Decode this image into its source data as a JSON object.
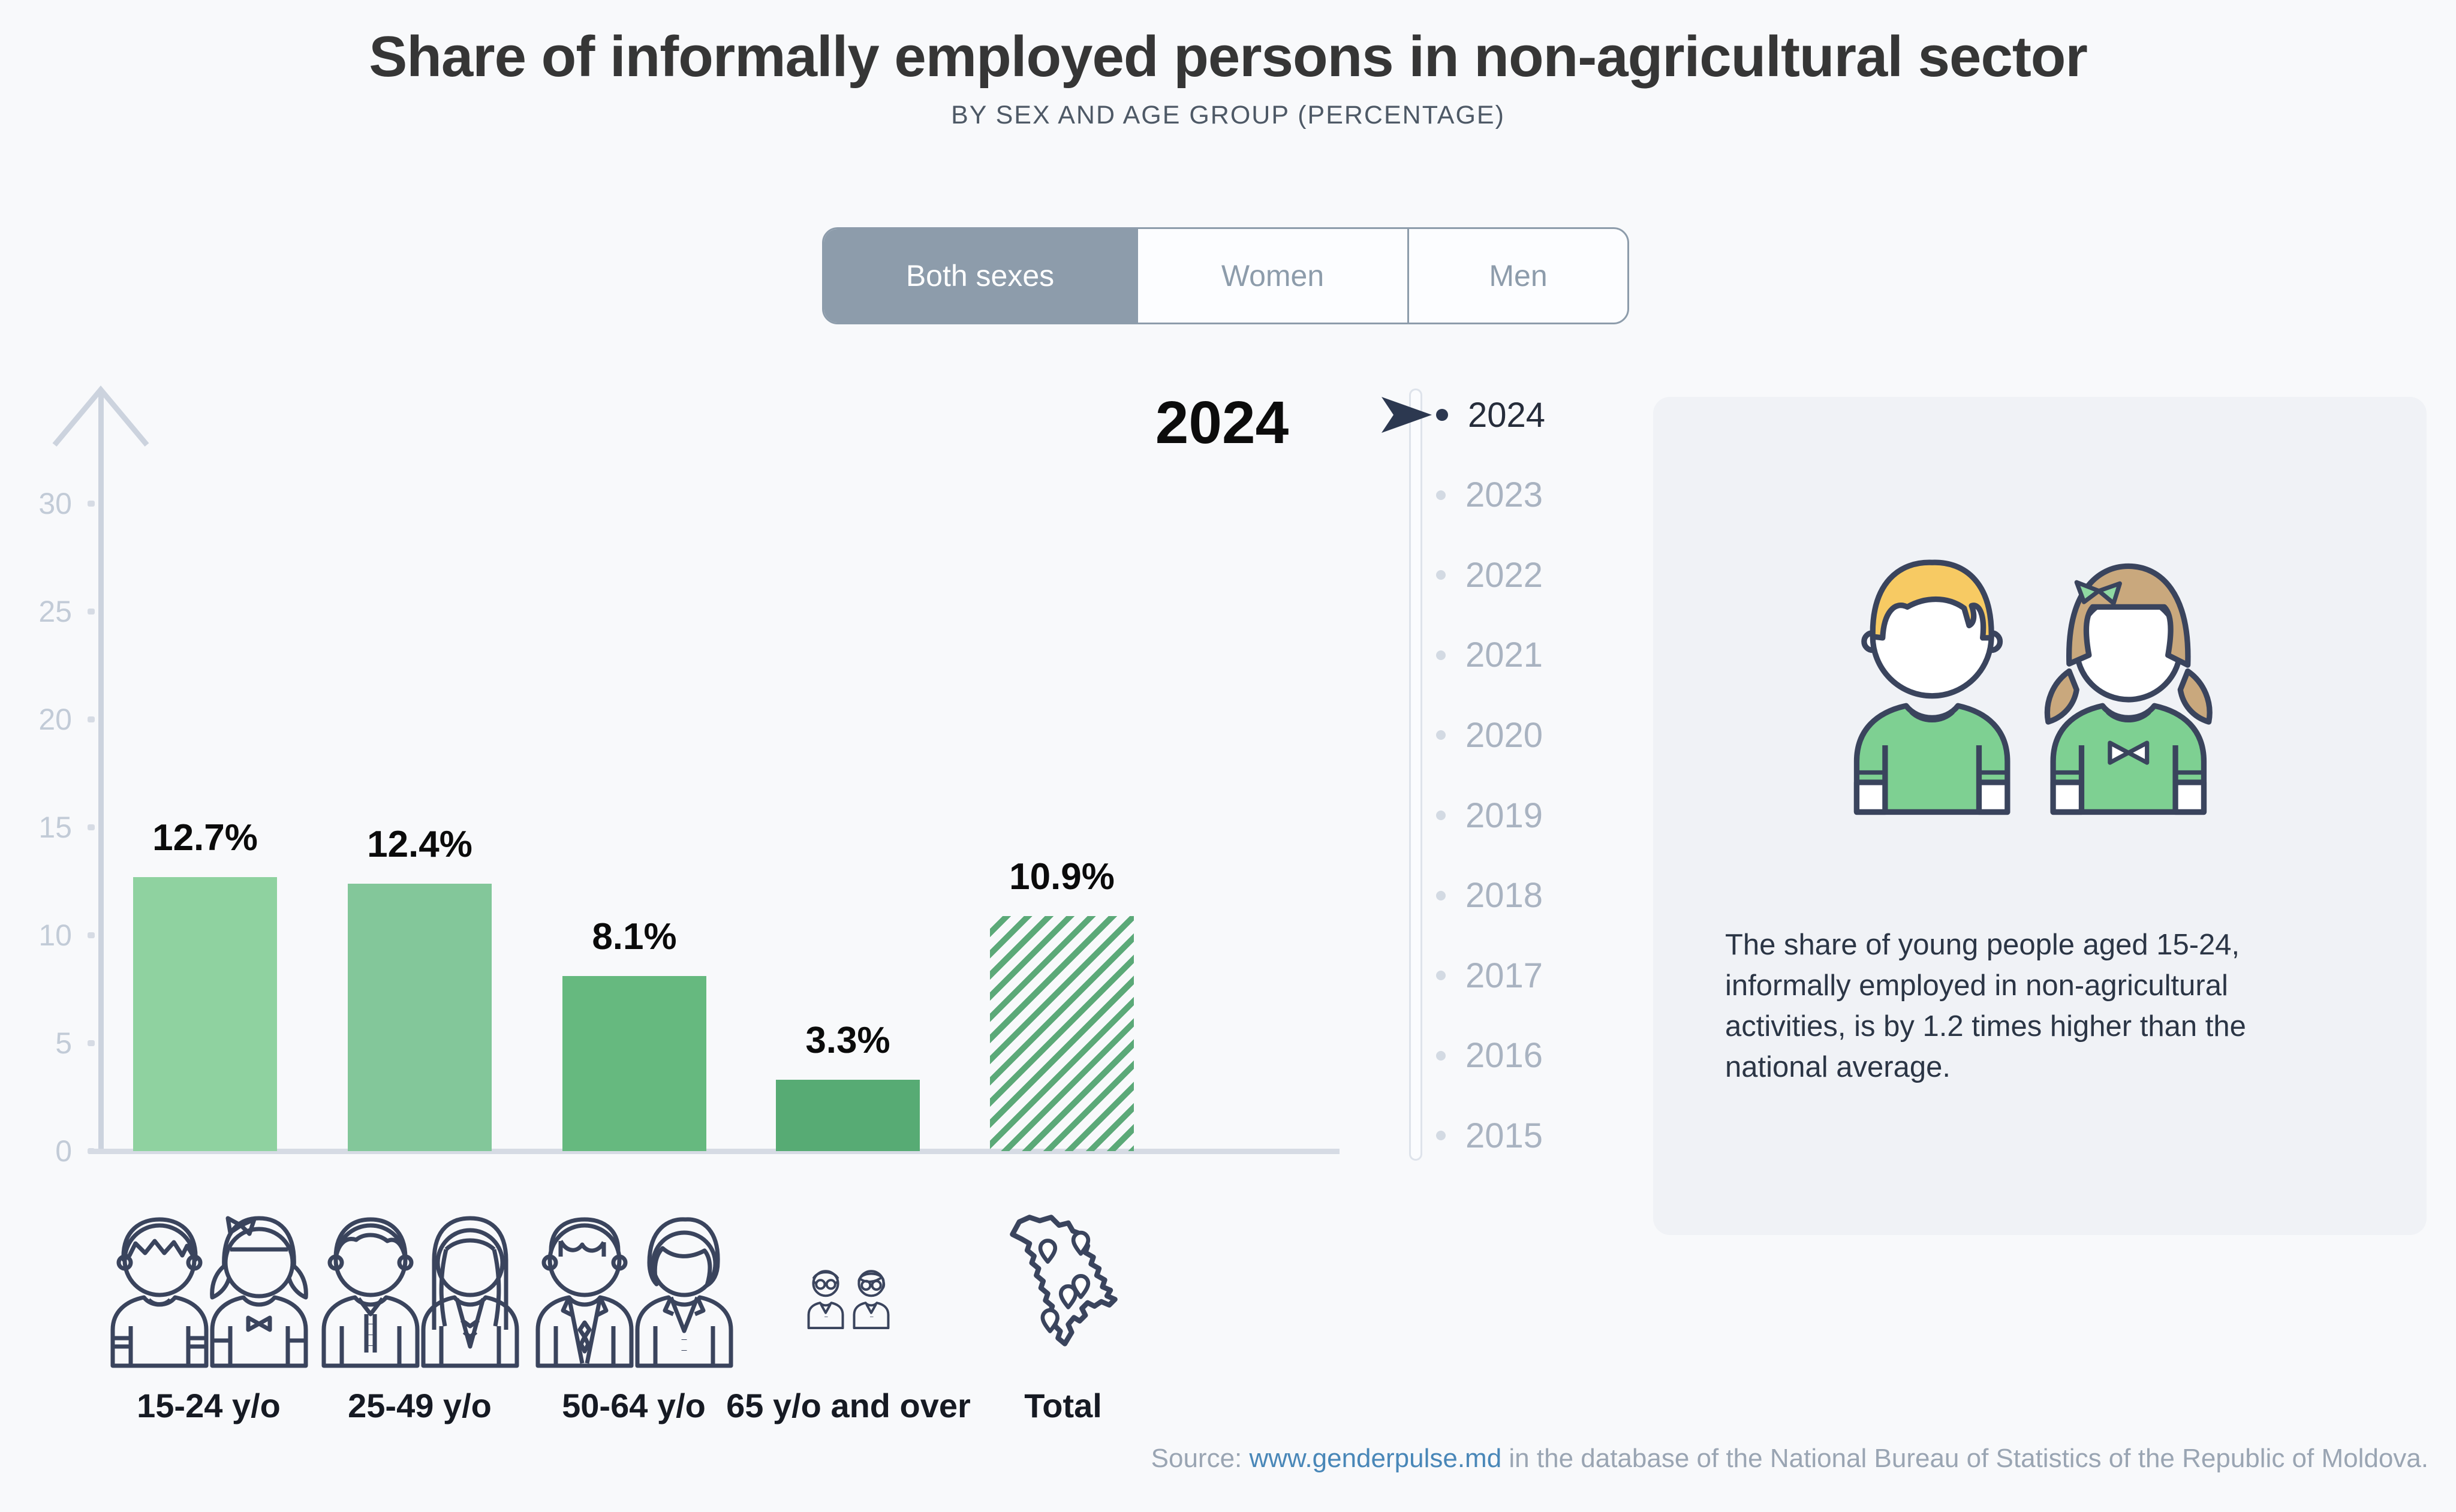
{
  "header": {
    "title": "Share of informally employed persons in non-agricultural sector",
    "subtitle": "BY SEX AND AGE GROUP (PERCENTAGE)"
  },
  "toggle": {
    "options": [
      {
        "label": "Both sexes",
        "selected": true
      },
      {
        "label": "Women",
        "selected": false
      },
      {
        "label": "Men",
        "selected": false
      }
    ]
  },
  "chart_data": {
    "type": "bar",
    "year_label": "2024",
    "categories": [
      "15-24 y/o",
      "25-49 y/o",
      "50-64 y/o",
      "65 y/o and over",
      "Total"
    ],
    "values": [
      12.7,
      12.4,
      8.1,
      3.3,
      10.9
    ],
    "value_labels": [
      "12.7%",
      "12.4%",
      "8.1%",
      "3.3%",
      "10.9%"
    ],
    "colors": [
      "#8fd2a0",
      "#83c79a",
      "#66b97f",
      "#57ab74",
      "#5ba978"
    ],
    "hatched": [
      false,
      false,
      false,
      false,
      true
    ],
    "yticks": [
      0,
      5,
      10,
      15,
      20,
      25,
      30
    ],
    "ylim": [
      0,
      33
    ],
    "xlabel": "",
    "ylabel": "",
    "grid": false,
    "legend_position": "none"
  },
  "timeline": {
    "years": [
      "2024",
      "2023",
      "2022",
      "2021",
      "2020",
      "2019",
      "2018",
      "2017",
      "2016",
      "2015"
    ],
    "selected": "2024",
    "selected_index": 0
  },
  "info_card": {
    "text": "The share of young people aged 15-24, informally employed in non-agricultural activities, is by 1.2 times higher than the national average."
  },
  "source": {
    "prefix": "Source: ",
    "link": "www.genderpulse.md",
    "suffix": " in the database of the National Bureau of Statistics of the Republic of Moldova."
  }
}
